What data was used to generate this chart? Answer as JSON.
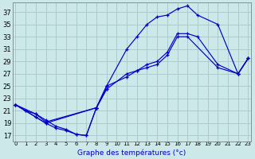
{
  "title": "Graphe des températures (°c)",
  "background_color": "#cce8e8",
  "grid_color": "#aacccc",
  "line_color": "#0000cc",
  "ylim": [
    16,
    38.5
  ],
  "xlim": [
    -0.3,
    23.3
  ],
  "yticks": [
    17,
    19,
    21,
    23,
    25,
    27,
    29,
    31,
    33,
    35,
    37
  ],
  "x_labels": [
    "0",
    "1",
    "2",
    "3",
    "4",
    "5",
    "6",
    "7",
    "8",
    "9",
    "10",
    "11",
    "12",
    "13",
    "14",
    "15",
    "16",
    "17",
    "18",
    "19",
    "20",
    "21",
    "22",
    "23"
  ],
  "curves": [
    [
      [
        0,
        22
      ],
      [
        1,
        21
      ],
      [
        2,
        20.5
      ],
      [
        3,
        19.5
      ],
      [
        4,
        18.5
      ],
      [
        5,
        18
      ],
      [
        6,
        17.2
      ],
      [
        7,
        17
      ],
      [
        8,
        21.5
      ],
      [
        9,
        24.5
      ],
      [
        11,
        27
      ],
      [
        12,
        27.5
      ],
      [
        13,
        28
      ],
      [
        14,
        28.5
      ],
      [
        15,
        30
      ],
      [
        16,
        33
      ],
      [
        17,
        33
      ],
      [
        20,
        28
      ],
      [
        22,
        27
      ],
      [
        23,
        29.5
      ]
    ],
    [
      [
        0,
        22
      ],
      [
        2,
        20.5
      ],
      [
        3,
        19.2
      ],
      [
        8,
        21.5
      ],
      [
        9,
        25
      ],
      [
        11,
        31
      ],
      [
        12,
        33
      ],
      [
        13,
        35
      ],
      [
        14,
        36.2
      ],
      [
        15,
        36.5
      ],
      [
        16,
        37.5
      ],
      [
        17,
        38
      ],
      [
        18,
        36.5
      ],
      [
        20,
        35
      ],
      [
        22,
        27
      ],
      [
        23,
        29.5
      ]
    ],
    [
      [
        0,
        22
      ],
      [
        1,
        21
      ],
      [
        2,
        20
      ],
      [
        3,
        19
      ],
      [
        4,
        18.2
      ],
      [
        5,
        17.8
      ],
      [
        6,
        17.2
      ],
      [
        7,
        17
      ],
      [
        8,
        21.5
      ],
      [
        9,
        24.5
      ]
    ],
    [
      [
        0,
        22
      ],
      [
        2,
        20
      ],
      [
        3,
        19
      ],
      [
        8,
        21.5
      ],
      [
        9,
        25
      ],
      [
        11,
        26.5
      ],
      [
        12,
        27.5
      ],
      [
        13,
        28.5
      ],
      [
        14,
        29
      ],
      [
        15,
        30.5
      ],
      [
        16,
        33.5
      ],
      [
        17,
        33.5
      ],
      [
        18,
        33
      ],
      [
        20,
        28.5
      ],
      [
        22,
        27
      ],
      [
        23,
        29.5
      ]
    ]
  ]
}
